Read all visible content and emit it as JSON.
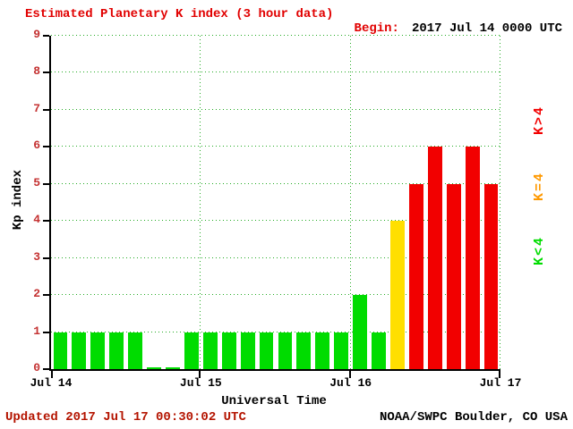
{
  "title": "Estimated Planetary K index (3 hour data)",
  "begin": {
    "label": "Begin:",
    "value": "2017 Jul 14 0000 UTC"
  },
  "axes": {
    "ylabel": "Kp index",
    "xlabel": "Universal Time"
  },
  "footer": {
    "updated": "Updated 2017 Jul 17 00:30:02 UTC",
    "source": "NOAA/SWPC Boulder, CO USA"
  },
  "colors": {
    "title": "#e10000",
    "updated": "#b41400",
    "ytick": "#c43131",
    "grid": "#22aa22",
    "axis": "#000000",
    "bar_green": "#00dc00",
    "bar_yellow": "#ffdf00",
    "bar_red": "#f20000"
  },
  "chart_data": {
    "type": "bar",
    "title": "Estimated Planetary K index (3 hour data)",
    "xlabel": "Universal Time",
    "ylabel": "Kp index",
    "ylim": [
      0,
      9
    ],
    "yticks": [
      0,
      1,
      2,
      3,
      4,
      5,
      6,
      7,
      8,
      9
    ],
    "x_tick_labels": [
      "Jul 14",
      "Jul 15",
      "Jul 16",
      "Jul 17"
    ],
    "begin_time": "2017 Jul 14 0000 UTC",
    "interval_hours": 3,
    "grid": "dotted-green",
    "values": [
      1,
      1,
      1,
      1,
      1,
      0,
      0,
      1,
      1,
      1,
      1,
      1,
      1,
      1,
      1,
      1,
      2,
      1,
      4,
      5,
      6,
      5,
      6,
      5
    ],
    "color_rule": {
      "below_4": "green",
      "equal_4": "yellow",
      "above_4": "red"
    },
    "legend_position": "right",
    "legend": [
      {
        "label": "K>4",
        "color": "#f20000"
      },
      {
        "label": "K=4",
        "color": "#ff9900"
      },
      {
        "label": "K<4",
        "color": "#00dc00"
      }
    ]
  }
}
